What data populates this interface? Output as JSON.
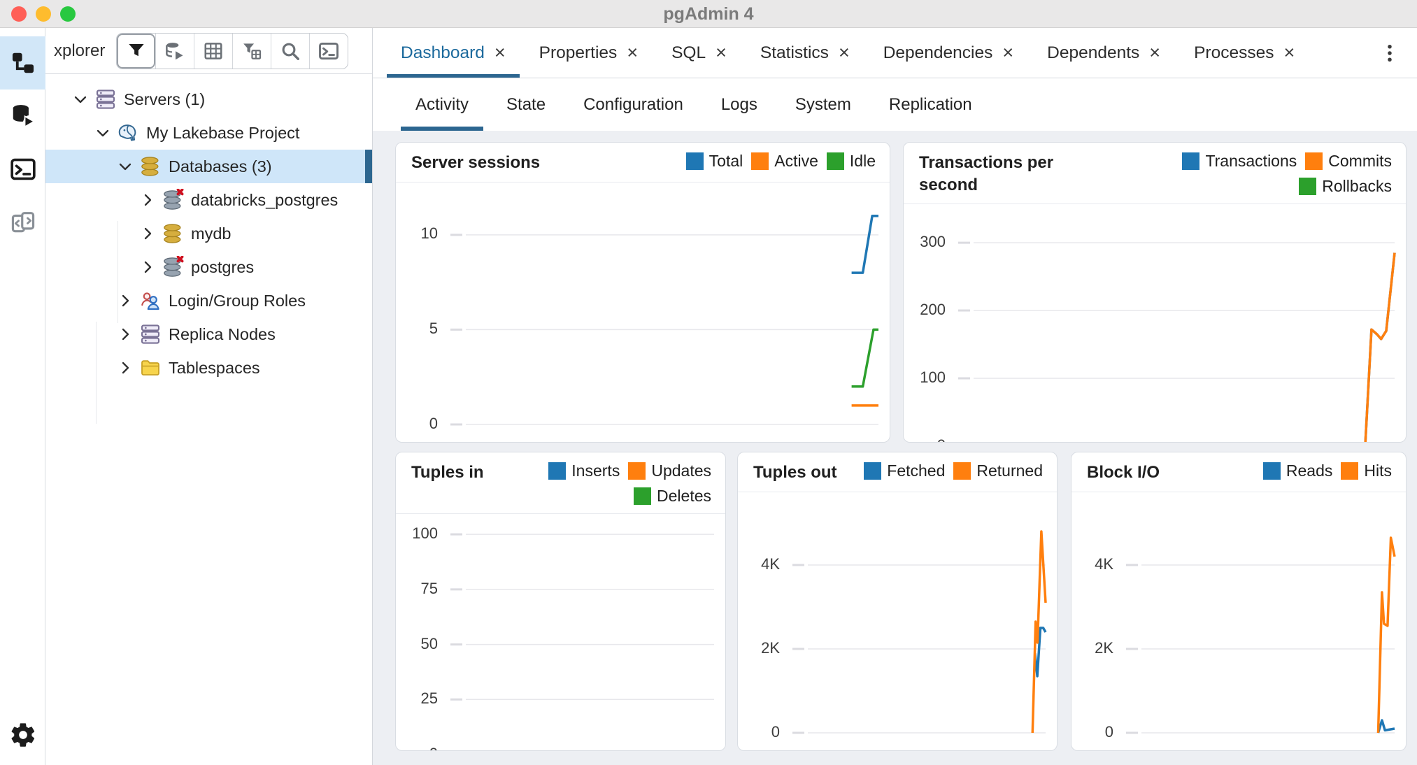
{
  "titlebar": {
    "title": "pgAdmin 4"
  },
  "traffic_lights": [
    "close",
    "minimize",
    "zoom"
  ],
  "colors": {
    "accent": "#2c6690",
    "active_tab_text": "#1b699c",
    "selection_bg": "#cfe6f9",
    "series_blue": "#1f77b4",
    "series_orange": "#ff7f0e",
    "series_green": "#2ca02c",
    "content_bg": "#edeff3"
  },
  "left_rail": {
    "items": [
      {
        "name": "object-explorer",
        "icon": "sitemap-icon",
        "active": true
      },
      {
        "name": "query-tool",
        "icon": "database-play-icon",
        "active": false
      },
      {
        "name": "psql-terminal",
        "icon": "terminal-icon",
        "active": false
      },
      {
        "name": "schema-diff",
        "icon": "schema-diff-icon",
        "active": false
      }
    ],
    "bottom_item": {
      "name": "preferences",
      "icon": "gear-icon"
    }
  },
  "sidebar": {
    "header_label": "xplorer",
    "toolbar": [
      {
        "name": "filter",
        "icon": "funnel-icon"
      },
      {
        "name": "connect-database",
        "icon": "database-arrow-icon"
      },
      {
        "name": "view-data",
        "icon": "grid-icon"
      },
      {
        "name": "filtered-rows",
        "icon": "funnel-grid-icon"
      },
      {
        "name": "search-objects",
        "icon": "search-icon"
      },
      {
        "name": "psql-tool",
        "icon": "terminal-icon"
      }
    ],
    "tree": [
      {
        "label": "Servers (1)",
        "depth": 0,
        "state": "expanded",
        "icon": "servers-icon",
        "selected": false
      },
      {
        "label": "My Lakebase Project",
        "depth": 1,
        "state": "expanded",
        "icon": "postgres-elephant-icon",
        "selected": false
      },
      {
        "label": "Databases (3)",
        "depth": 2,
        "state": "expanded",
        "icon": "database-gold-icon",
        "selected": true
      },
      {
        "label": "databricks_postgres",
        "depth": 3,
        "state": "collapsed",
        "icon": "database-disconnected-icon",
        "selected": false
      },
      {
        "label": "mydb",
        "depth": 3,
        "state": "collapsed",
        "icon": "database-gold-icon",
        "selected": false
      },
      {
        "label": "postgres",
        "depth": 3,
        "state": "collapsed",
        "icon": "database-disconnected-icon",
        "selected": false
      },
      {
        "label": "Login/Group Roles",
        "depth": 2,
        "state": "collapsed",
        "icon": "group-roles-icon",
        "selected": false
      },
      {
        "label": "Replica Nodes",
        "depth": 2,
        "state": "collapsed",
        "icon": "replica-nodes-icon",
        "selected": false
      },
      {
        "label": "Tablespaces",
        "depth": 2,
        "state": "collapsed",
        "icon": "tablespaces-folder-icon",
        "selected": false
      }
    ]
  },
  "tabs": {
    "close_glyph": "×",
    "items": [
      {
        "label": "Dashboard",
        "active": true
      },
      {
        "label": "Properties",
        "active": false
      },
      {
        "label": "SQL",
        "active": false
      },
      {
        "label": "Statistics",
        "active": false
      },
      {
        "label": "Dependencies",
        "active": false
      },
      {
        "label": "Dependents",
        "active": false
      },
      {
        "label": "Processes",
        "active": false
      }
    ],
    "overflow_menu_icon": "kebab-menu-icon"
  },
  "subtabs": {
    "items": [
      {
        "label": "Activity",
        "active": true
      },
      {
        "label": "State",
        "active": false
      },
      {
        "label": "Configuration",
        "active": false
      },
      {
        "label": "Logs",
        "active": false
      },
      {
        "label": "System",
        "active": false
      },
      {
        "label": "Replication",
        "active": false
      }
    ]
  },
  "chart_data": [
    {
      "id": "server_sessions",
      "type": "line",
      "title": "Server sessions",
      "grid": "horizontal",
      "legend_position": "top-right",
      "x_axis": "time (no visible tick labels; data only in most recent window at right edge)",
      "x_unit": "fraction of plot width",
      "ylim": [
        0,
        11.8
      ],
      "yticks": [
        {
          "label": "10",
          "value": 10
        },
        {
          "label": "5",
          "value": 5
        },
        {
          "label": "0",
          "value": 0
        }
      ],
      "series": [
        {
          "name": "Total",
          "color": "#1f77b4",
          "points": [
            [
              0.935,
              8
            ],
            [
              0.962,
              8
            ],
            [
              0.985,
              11
            ],
            [
              1,
              11
            ]
          ]
        },
        {
          "name": "Active",
          "color": "#ff7f0e",
          "points": [
            [
              0.935,
              1
            ],
            [
              1,
              1
            ]
          ]
        },
        {
          "name": "Idle",
          "color": "#2ca02c",
          "points": [
            [
              0.935,
              2
            ],
            [
              0.962,
              2
            ],
            [
              0.988,
              5
            ],
            [
              1,
              5
            ]
          ]
        }
      ]
    },
    {
      "id": "transactions_per_second",
      "type": "line",
      "title": "Transactions per second",
      "grid": "horizontal",
      "legend_position": "top-right",
      "x_axis": "time (no visible tick labels; data only in most recent window at right edge)",
      "x_unit": "fraction of plot width",
      "ylim": [
        0,
        330
      ],
      "yticks": [
        {
          "label": "300",
          "value": 300
        },
        {
          "label": "200",
          "value": 200
        },
        {
          "label": "100",
          "value": 100
        },
        {
          "label": "0",
          "value": 0
        }
      ],
      "series": [
        {
          "name": "Transactions",
          "color": "#1f77b4",
          "points": [
            [
              0.93,
              0
            ],
            [
              0.945,
              172
            ],
            [
              0.958,
              165
            ],
            [
              0.968,
              158
            ],
            [
              0.98,
              170
            ],
            [
              1,
              285
            ]
          ]
        },
        {
          "name": "Commits",
          "color": "#ff7f0e",
          "points": [
            [
              0.93,
              0
            ],
            [
              0.945,
              172
            ],
            [
              0.958,
              165
            ],
            [
              0.968,
              158
            ],
            [
              0.98,
              170
            ],
            [
              1,
              285
            ]
          ]
        },
        {
          "name": "Rollbacks",
          "color": "#2ca02c",
          "points": [
            [
              0.935,
              0
            ],
            [
              1,
              0
            ]
          ]
        }
      ]
    },
    {
      "id": "tuples_in",
      "type": "line",
      "title": "Tuples in",
      "grid": "horizontal",
      "legend_position": "top-right",
      "x_axis": "time (no visible tick labels; data only in most recent window at right edge)",
      "x_unit": "fraction of plot width",
      "ylim": [
        0,
        101
      ],
      "yticks": [
        {
          "label": "100",
          "value": 100
        },
        {
          "label": "75",
          "value": 75
        },
        {
          "label": "50",
          "value": 50
        },
        {
          "label": "25",
          "value": 25
        },
        {
          "label": "0",
          "value": 0
        }
      ],
      "series": [
        {
          "name": "Inserts",
          "color": "#1f77b4",
          "points": [
            [
              0.92,
              0
            ],
            [
              1,
              0
            ]
          ]
        },
        {
          "name": "Updates",
          "color": "#ff7f0e",
          "points": [
            [
              0.92,
              0
            ],
            [
              1,
              0
            ]
          ]
        },
        {
          "name": "Deletes",
          "color": "#2ca02c",
          "points": [
            [
              0.92,
              0
            ],
            [
              1,
              0
            ]
          ]
        }
      ]
    },
    {
      "id": "tuples_out",
      "type": "line",
      "title": "Tuples out",
      "grid": "horizontal",
      "legend_position": "top-right",
      "x_axis": "time (no visible tick labels; data only in most recent window at right edge)",
      "x_unit": "fraction of plot width",
      "ylim": [
        0,
        5300
      ],
      "yticks": [
        {
          "label": "4K",
          "value": 4000
        },
        {
          "label": "2K",
          "value": 2000
        },
        {
          "label": "0",
          "value": 0
        }
      ],
      "series": [
        {
          "name": "Fetched",
          "color": "#1f77b4",
          "points": [
            [
              0.955,
              1900
            ],
            [
              0.965,
              1350
            ],
            [
              0.978,
              2500
            ],
            [
              0.99,
              2500
            ],
            [
              1,
              2400
            ]
          ]
        },
        {
          "name": "Returned",
          "color": "#ff7f0e",
          "points": [
            [
              0.945,
              0
            ],
            [
              0.958,
              2650
            ],
            [
              0.966,
              2150
            ],
            [
              0.982,
              4800
            ],
            [
              1,
              3100
            ]
          ]
        }
      ]
    },
    {
      "id": "block_io",
      "type": "line",
      "title": "Block I/O",
      "grid": "horizontal",
      "legend_position": "top-right",
      "x_axis": "time (no visible tick labels; data only in most recent window at right edge)",
      "x_unit": "fraction of plot width",
      "ylim": [
        0,
        5300
      ],
      "yticks": [
        {
          "label": "4K",
          "value": 4000
        },
        {
          "label": "2K",
          "value": 2000
        },
        {
          "label": "0",
          "value": 0
        }
      ],
      "series": [
        {
          "name": "Reads",
          "color": "#1f77b4",
          "points": [
            [
              0.935,
              0
            ],
            [
              0.95,
              300
            ],
            [
              0.962,
              60
            ],
            [
              1,
              100
            ]
          ]
        },
        {
          "name": "Hits",
          "color": "#ff7f0e",
          "points": [
            [
              0.935,
              0
            ],
            [
              0.95,
              3350
            ],
            [
              0.958,
              2600
            ],
            [
              0.972,
              2550
            ],
            [
              0.985,
              4650
            ],
            [
              1,
              4200
            ]
          ]
        }
      ]
    }
  ]
}
